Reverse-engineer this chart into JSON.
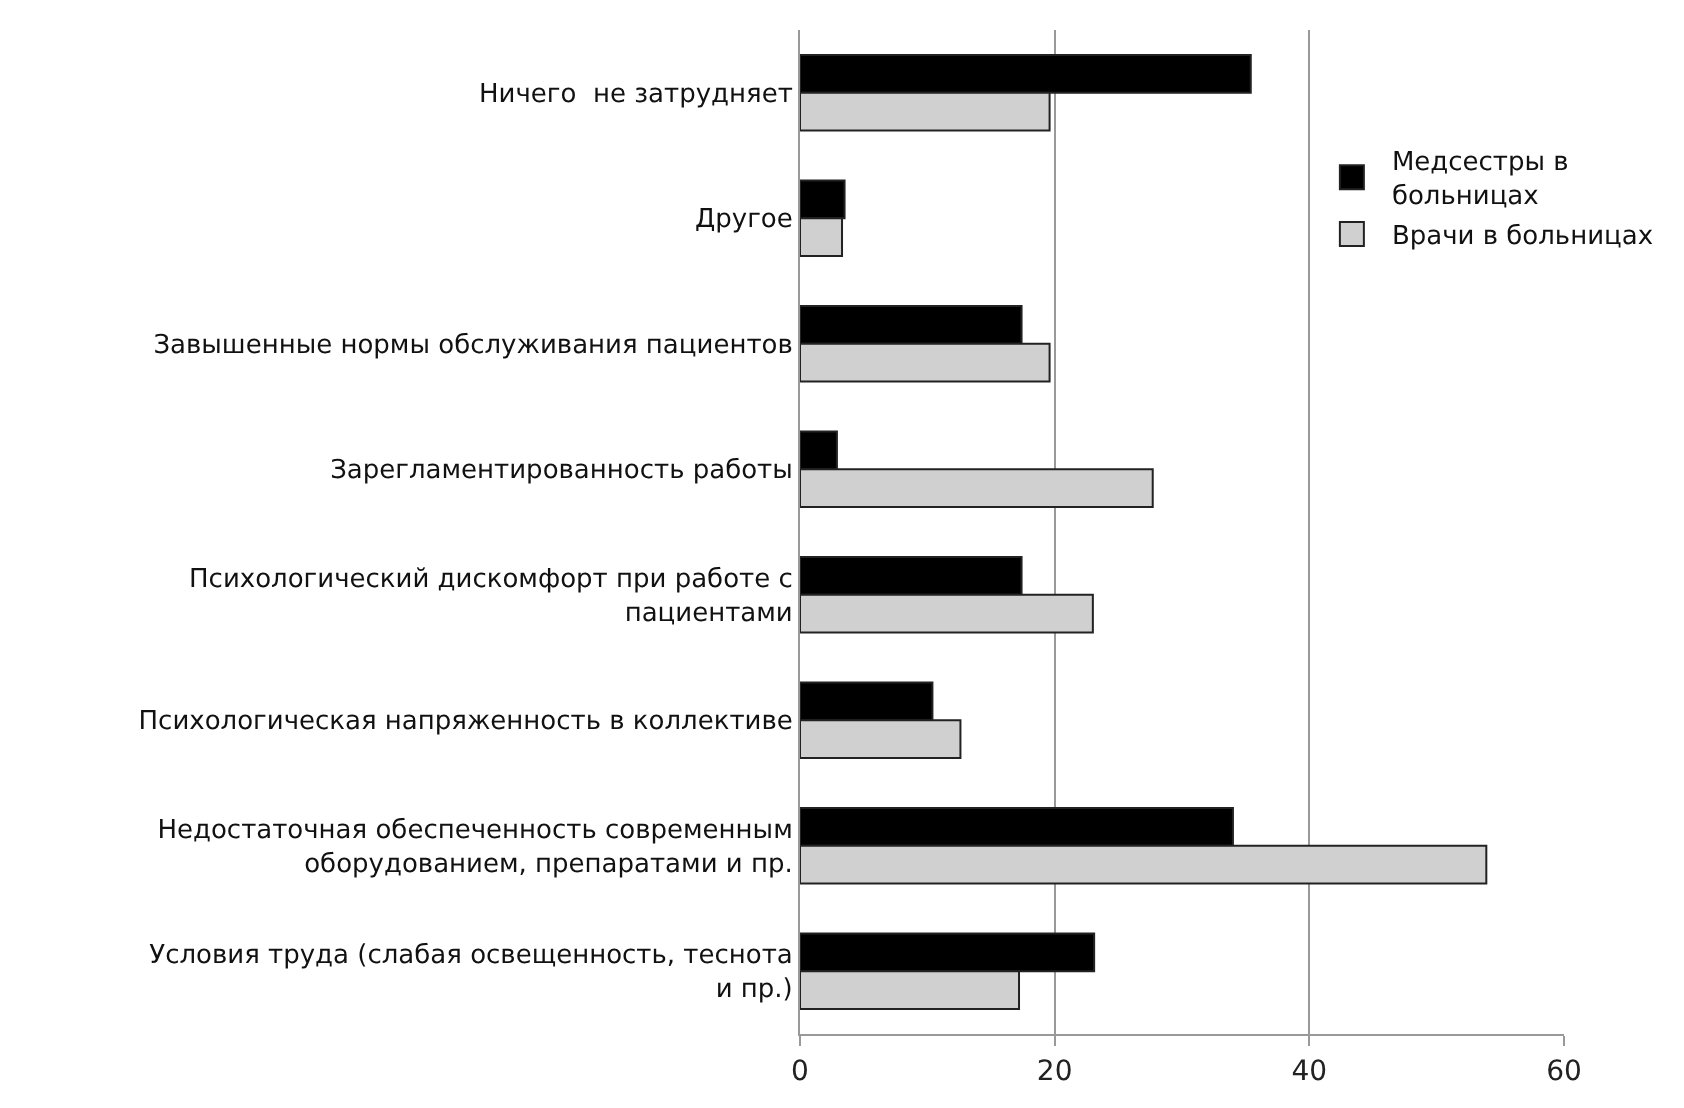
{
  "chart_data": {
    "type": "bar",
    "orientation": "horizontal",
    "categories": [
      "Ничего  не затрудняет",
      "Другое",
      "Завышенные нормы обслуживания пациентов",
      "Зарегламентированность работы",
      "Психологический дискомфорт при работе с пациентами",
      "Психологическая напряженность в коллективе",
      "Недостаточная обеспеченность современным оборудованием, препаратами и пр.",
      "Условия труда (слабая освещенность, теснота и пр.)"
    ],
    "series": [
      {
        "name": "Медсестры в больницах",
        "color": "#000000",
        "values": [
          35.4,
          3.5,
          17.4,
          2.9,
          17.4,
          10.4,
          34.0,
          23.1
        ]
      },
      {
        "name": "Врачи в больницах",
        "color": "#d0d0d0",
        "values": [
          19.6,
          3.3,
          19.6,
          27.7,
          23.0,
          12.6,
          53.9,
          17.2
        ]
      }
    ],
    "xlim": [
      0,
      60
    ],
    "xticks": [
      0,
      20,
      40,
      60
    ],
    "grid": "x",
    "legend": "right"
  }
}
